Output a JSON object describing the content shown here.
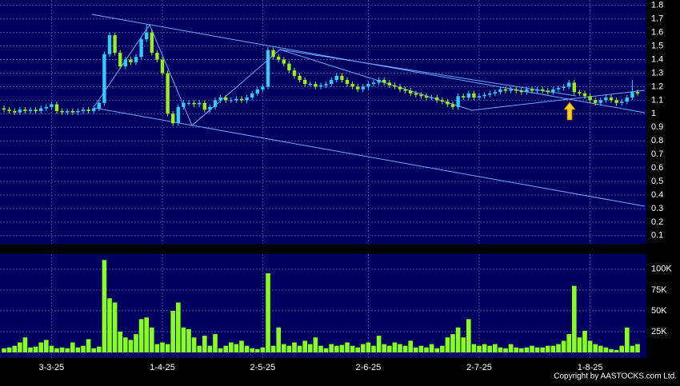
{
  "chart_data": {
    "type": "candlestick",
    "up_color": "#33ccff",
    "down_color": "#99ee22",
    "ylim": [
      0.04,
      1.84
    ],
    "yticks": [
      0.1,
      0.2,
      0.3,
      0.4,
      0.5,
      0.6,
      0.7,
      0.8,
      0.9,
      1,
      1.1,
      1.2,
      1.3,
      1.4,
      1.5,
      1.6,
      1.7,
      1.8
    ],
    "xticks": [
      {
        "value": 9,
        "label": "3-3-25"
      },
      {
        "value": 30,
        "label": "1-4-25"
      },
      {
        "value": 49,
        "label": "2-5-25"
      },
      {
        "value": 69,
        "label": "2-6-25"
      },
      {
        "value": 90,
        "label": "2-7-25"
      },
      {
        "value": 111,
        "label": "1-8-25"
      }
    ],
    "grid": true,
    "open": [
      1.04,
      1.03,
      1.02,
      1.01,
      1.03,
      1.02,
      1.03,
      1.02,
      1.04,
      1.05,
      1.07,
      1.02,
      1.01,
      1.02,
      1.01,
      1.02,
      1.03,
      1.02,
      1.04,
      1.08,
      1.44,
      1.58,
      1.45,
      1.35,
      1.4,
      1.38,
      1.42,
      1.55,
      1.6,
      1.45,
      1.4,
      1.3,
      1.0,
      0.93,
      1.05,
      1.08,
      1.08,
      1.07,
      1.08,
      1.03,
      1.05,
      1.1,
      1.12,
      1.1,
      1.1,
      1.11,
      1.1,
      1.12,
      1.15,
      1.18,
      1.2,
      1.47,
      1.42,
      1.4,
      1.37,
      1.32,
      1.28,
      1.25,
      1.22,
      1.22,
      1.2,
      1.21,
      1.22,
      1.25,
      1.28,
      1.25,
      1.22,
      1.2,
      1.18,
      1.2,
      1.22,
      1.23,
      1.25,
      1.23,
      1.21,
      1.2,
      1.18,
      1.17,
      1.15,
      1.14,
      1.13,
      1.12,
      1.12,
      1.1,
      1.09,
      1.07,
      1.05,
      1.13,
      1.12,
      1.15,
      1.12,
      1.13,
      1.14,
      1.15,
      1.16,
      1.18,
      1.17,
      1.18,
      1.17,
      1.16,
      1.18,
      1.17,
      1.18,
      1.17,
      1.16,
      1.18,
      1.19,
      1.2,
      1.23,
      1.16,
      1.15,
      1.13,
      1.1,
      1.08,
      1.1,
      1.12,
      1.1,
      1.08,
      1.09,
      1.12,
      1.16
    ],
    "high": [
      1.06,
      1.05,
      1.04,
      1.05,
      1.05,
      1.05,
      1.05,
      1.06,
      1.07,
      1.09,
      1.09,
      1.04,
      1.04,
      1.04,
      1.04,
      1.05,
      1.05,
      1.06,
      1.1,
      1.46,
      1.6,
      1.6,
      1.47,
      1.42,
      1.42,
      1.44,
      1.57,
      1.66,
      1.62,
      1.47,
      1.42,
      1.32,
      1.02,
      1.07,
      1.1,
      1.1,
      1.1,
      1.1,
      1.1,
      1.07,
      1.12,
      1.14,
      1.14,
      1.12,
      1.13,
      1.13,
      1.14,
      1.17,
      1.2,
      1.22,
      1.49,
      1.49,
      1.44,
      1.42,
      1.39,
      1.34,
      1.3,
      1.27,
      1.24,
      1.24,
      1.23,
      1.24,
      1.27,
      1.3,
      1.3,
      1.27,
      1.24,
      1.22,
      1.22,
      1.24,
      1.25,
      1.27,
      1.27,
      1.25,
      1.23,
      1.22,
      1.2,
      1.19,
      1.17,
      1.16,
      1.15,
      1.14,
      1.14,
      1.12,
      1.11,
      1.09,
      1.15,
      1.15,
      1.17,
      1.17,
      1.15,
      1.16,
      1.17,
      1.18,
      1.2,
      1.2,
      1.2,
      1.2,
      1.19,
      1.2,
      1.2,
      1.2,
      1.2,
      1.19,
      1.2,
      1.21,
      1.22,
      1.25,
      1.25,
      1.18,
      1.17,
      1.15,
      1.12,
      1.12,
      1.14,
      1.14,
      1.12,
      1.11,
      1.14,
      1.25,
      1.18
    ],
    "low": [
      1.01,
      1.0,
      0.99,
      0.99,
      1.0,
      1.0,
      1.0,
      1.0,
      1.02,
      1.03,
      1.0,
      0.99,
      0.99,
      0.99,
      0.99,
      1.0,
      1.0,
      1.0,
      1.02,
      1.06,
      1.42,
      1.43,
      1.33,
      1.33,
      1.36,
      1.36,
      1.4,
      1.53,
      1.43,
      1.38,
      1.28,
      0.98,
      0.91,
      0.91,
      1.03,
      1.06,
      1.05,
      1.05,
      1.01,
      1.01,
      1.03,
      1.08,
      1.08,
      1.08,
      1.08,
      1.08,
      1.08,
      1.1,
      1.13,
      1.16,
      1.18,
      1.4,
      1.38,
      1.35,
      1.3,
      1.26,
      1.23,
      1.2,
      1.2,
      1.18,
      1.18,
      1.19,
      1.2,
      1.23,
      1.23,
      1.2,
      1.18,
      1.16,
      1.16,
      1.18,
      1.2,
      1.21,
      1.21,
      1.19,
      1.18,
      1.16,
      1.15,
      1.13,
      1.12,
      1.11,
      1.1,
      1.1,
      1.08,
      1.07,
      1.05,
      1.03,
      1.03,
      1.1,
      1.1,
      1.1,
      1.1,
      1.11,
      1.12,
      1.13,
      1.14,
      1.15,
      1.15,
      1.15,
      1.14,
      1.14,
      1.15,
      1.15,
      1.15,
      1.14,
      1.14,
      1.16,
      1.17,
      1.18,
      1.14,
      1.13,
      1.11,
      1.08,
      1.06,
      1.06,
      1.08,
      1.08,
      1.06,
      1.06,
      1.07,
      1.1,
      1.13
    ],
    "close": [
      1.03,
      1.02,
      1.01,
      1.03,
      1.02,
      1.03,
      1.02,
      1.04,
      1.05,
      1.07,
      1.02,
      1.01,
      1.02,
      1.01,
      1.02,
      1.03,
      1.02,
      1.04,
      1.08,
      1.44,
      1.58,
      1.45,
      1.35,
      1.4,
      1.38,
      1.42,
      1.55,
      1.6,
      1.45,
      1.4,
      1.3,
      1.0,
      0.93,
      1.05,
      1.08,
      1.08,
      1.07,
      1.08,
      1.03,
      1.05,
      1.1,
      1.12,
      1.1,
      1.1,
      1.11,
      1.1,
      1.12,
      1.15,
      1.18,
      1.2,
      1.47,
      1.42,
      1.4,
      1.37,
      1.32,
      1.28,
      1.25,
      1.22,
      1.22,
      1.2,
      1.21,
      1.22,
      1.25,
      1.28,
      1.25,
      1.22,
      1.2,
      1.18,
      1.2,
      1.22,
      1.23,
      1.25,
      1.23,
      1.21,
      1.2,
      1.18,
      1.17,
      1.15,
      1.14,
      1.13,
      1.12,
      1.12,
      1.1,
      1.09,
      1.07,
      1.05,
      1.13,
      1.12,
      1.15,
      1.12,
      1.13,
      1.14,
      1.15,
      1.16,
      1.18,
      1.17,
      1.18,
      1.17,
      1.16,
      1.18,
      1.17,
      1.18,
      1.17,
      1.16,
      1.18,
      1.19,
      1.2,
      1.23,
      1.16,
      1.15,
      1.13,
      1.1,
      1.08,
      1.1,
      1.12,
      1.1,
      1.08,
      1.09,
      1.12,
      1.16,
      1.15
    ],
    "volume": {
      "color": "#88ff22",
      "ylim": [
        0,
        120000
      ],
      "yticks": [
        {
          "value": 25000,
          "label": "25K"
        },
        {
          "value": 50000,
          "label": "50K"
        },
        {
          "value": 75000,
          "label": "75K"
        },
        {
          "value": 100000,
          "label": "100K"
        }
      ],
      "values": [
        5000,
        6000,
        8000,
        12000,
        18000,
        6000,
        7000,
        12000,
        15000,
        8000,
        5000,
        6000,
        5000,
        12000,
        6000,
        8000,
        16000,
        5000,
        7000,
        111000,
        65000,
        60000,
        25000,
        18000,
        15000,
        22000,
        40000,
        42000,
        30000,
        10000,
        12000,
        10000,
        50000,
        60000,
        30000,
        28000,
        18000,
        8000,
        20000,
        8000,
        22000,
        5000,
        8000,
        12000,
        10000,
        14000,
        8000,
        5000,
        4000,
        6000,
        95000,
        8000,
        30000,
        10000,
        8000,
        12000,
        8000,
        14000,
        10000,
        18000,
        8000,
        5000,
        10000,
        8000,
        9000,
        12000,
        8000,
        6000,
        10000,
        12000,
        8000,
        20000,
        10000,
        8000,
        12000,
        10000,
        8000,
        14000,
        6000,
        8000,
        6000,
        10000,
        5000,
        8000,
        18000,
        22000,
        30000,
        18000,
        40000,
        10000,
        8000,
        10000,
        8000,
        10000,
        6000,
        5000,
        10000,
        6000,
        5000,
        6000,
        8000,
        6000,
        6000,
        8000,
        8000,
        10000,
        14000,
        22000,
        80000,
        18000,
        26000,
        14000,
        10000,
        8000,
        6000,
        4000,
        3000,
        8000,
        30000,
        8000,
        10000
      ]
    },
    "credit": "Copyright by AASTOCKS.com Ltd."
  }
}
